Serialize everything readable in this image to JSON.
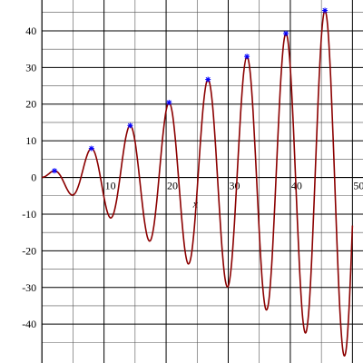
{
  "chart_data": {
    "type": "line",
    "x_label": "x",
    "x": [
      0,
      0.5,
      1,
      1.5,
      2,
      2.5,
      3,
      3.5,
      4,
      4.5,
      5,
      5.5,
      6,
      6.5,
      7,
      7.5,
      8,
      8.5,
      9,
      9.5,
      10,
      10.5,
      11,
      11.5,
      12,
      12.5,
      13,
      13.5,
      14,
      14.5,
      15,
      15.5,
      16,
      16.5,
      17,
      17.5,
      18,
      18.5,
      19,
      19.5,
      20,
      20.5,
      21,
      21.5,
      22,
      22.5,
      23,
      23.5,
      24,
      24.5,
      25,
      25.5,
      26,
      26.5,
      27,
      27.5,
      28,
      28.5,
      29,
      29.5,
      30,
      30.5,
      31,
      31.5,
      32,
      32.5,
      33,
      33.5,
      34,
      34.5,
      35,
      35.5,
      36,
      36.5,
      37,
      37.5,
      38,
      38.5,
      39,
      39.5,
      40,
      40.5,
      41,
      41.5,
      42,
      42.5,
      43,
      43.5,
      44,
      44.5,
      45,
      45.5,
      46,
      46.5,
      47,
      47.5,
      48,
      48.5,
      49,
      49.5,
      50
    ],
    "series": [
      {
        "color": "#8b0000",
        "values": [
          0,
          0.24,
          0.84,
          1.5,
          1.82,
          1.5,
          0.42,
          -1.23,
          -3.03,
          -4.4,
          -4.79,
          -3.88,
          -1.68,
          1.4,
          4.6,
          7.03,
          7.92,
          6.79,
          3.71,
          -0.71,
          -5.44,
          -9.24,
          -11.0,
          -10.07,
          -6.44,
          -0.83,
          5.46,
          10.85,
          13.87,
          13.56,
          9.75,
          3.2,
          -4.61,
          -11.74,
          -16.34,
          -17.15,
          -13.52,
          -6.34,
          2.85,
          11.81,
          18.26,
          20.43,
          17.57,
          10.14,
          -0.19,
          -10.96,
          -19.46,
          -23.46,
          -21.73,
          -14.5,
          -3.31,
          9.16,
          19.83,
          25.95,
          25.82,
          19.28,
          7.59,
          -6.37,
          -19.24,
          -27.76,
          -29.64,
          -24.19,
          -12.52,
          2.65,
          17.64,
          28.73,
          33.0,
          29.19,
          17.99,
          1.98,
          -14.99,
          -28.72,
          -35.71,
          -34.08,
          -23.81,
          -7.43,
          11.26,
          27.64,
          37.59,
          38.46,
          29.8,
          13.55,
          -6.5,
          -25.44,
          -38.49,
          -42.33,
          -35.76,
          -20.18,
          0.78,
          22.02,
          38.29,
          45.44,
          41.48,
          27.13,
          5.81,
          -17.44,
          -36.88,
          -47.61,
          -46.73,
          -34.24,
          -13.12
        ]
      }
    ],
    "points": {
      "color": "#0000ff",
      "x": [
        2.03,
        7.98,
        14.21,
        20.47,
        26.74,
        33.01,
        39.29,
        45.57
      ],
      "values": [
        1.82,
        7.92,
        14.17,
        20.45,
        26.73,
        33.0,
        39.28,
        45.56
      ]
    },
    "xlim": [
      -6.75,
      51.7
    ],
    "ylim": [
      -50.6,
      48.4
    ],
    "xticks": [
      10,
      20,
      30,
      40,
      50
    ],
    "yticks": [
      -40,
      -30,
      -20,
      -10,
      0,
      10,
      20,
      30,
      40
    ],
    "x_minor_grid": [
      5,
      15,
      25,
      35,
      45
    ],
    "y_minor_grid": [
      -45,
      -35,
      -25,
      -15,
      -5,
      5,
      15,
      25,
      35,
      45
    ],
    "grid": true
  }
}
